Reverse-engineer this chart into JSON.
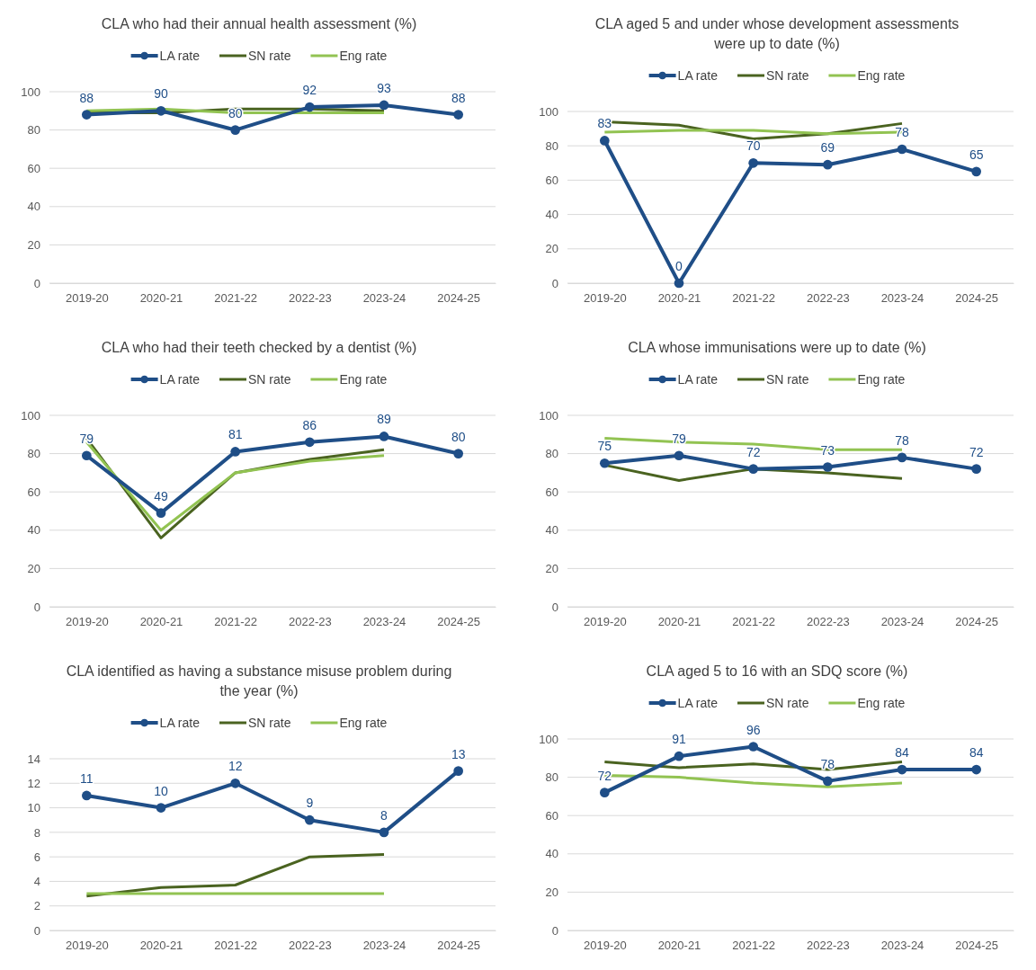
{
  "chart_data": [
    {
      "type": "line",
      "title": "CLA who had their annual health assessment (%)",
      "categories": [
        "2019-20",
        "2020-21",
        "2021-22",
        "2022-23",
        "2023-24",
        "2024-25"
      ],
      "ylim": [
        0,
        100
      ],
      "yticks": [
        0,
        20,
        40,
        60,
        80,
        100
      ],
      "grid": "y",
      "legend": "top",
      "series": [
        {
          "name": "LA rate",
          "color": "#1f4e87",
          "marker": "circle",
          "values": [
            88,
            90,
            80,
            92,
            93,
            88
          ],
          "value_labels": [
            "88",
            "90",
            "80",
            "92",
            "93",
            "88"
          ]
        },
        {
          "name": "SN rate",
          "color": "#4a6320",
          "marker": "none",
          "values": [
            89,
            89,
            91,
            91,
            90,
            null
          ]
        },
        {
          "name": "Eng rate",
          "color": "#92c352",
          "marker": "none",
          "values": [
            90,
            91,
            89,
            89,
            89,
            null
          ]
        }
      ]
    },
    {
      "type": "line",
      "title": "CLA aged 5 and under whose development assessments were up to date (%)",
      "categories": [
        "2019-20",
        "2020-21",
        "2021-22",
        "2022-23",
        "2023-24",
        "2024-25"
      ],
      "ylim": [
        0,
        100
      ],
      "yticks": [
        0,
        20,
        40,
        60,
        80,
        100
      ],
      "grid": "y",
      "legend": "top",
      "series": [
        {
          "name": "LA rate",
          "color": "#1f4e87",
          "marker": "circle",
          "values": [
            83,
            0,
            70,
            69,
            78,
            65
          ],
          "value_labels": [
            "83",
            "0",
            "70",
            "69",
            "78",
            "65"
          ]
        },
        {
          "name": "SN rate",
          "color": "#4a6320",
          "marker": "none",
          "values": [
            94,
            92,
            84,
            87,
            93,
            null
          ]
        },
        {
          "name": "Eng rate",
          "color": "#92c352",
          "marker": "none",
          "values": [
            88,
            89,
            89,
            87,
            88,
            null
          ]
        }
      ]
    },
    {
      "type": "line",
      "title": "CLA who had their teeth checked by a dentist (%)",
      "categories": [
        "2019-20",
        "2020-21",
        "2021-22",
        "2022-23",
        "2023-24",
        "2024-25"
      ],
      "ylim": [
        0,
        100
      ],
      "yticks": [
        0,
        20,
        40,
        60,
        80,
        100
      ],
      "grid": "y",
      "legend": "top",
      "series": [
        {
          "name": "LA rate",
          "color": "#1f4e87",
          "marker": "circle",
          "values": [
            79,
            49,
            81,
            86,
            89,
            80
          ],
          "value_labels": [
            "79",
            "49",
            "81",
            "86",
            "89",
            "80"
          ]
        },
        {
          "name": "SN rate",
          "color": "#4a6320",
          "marker": "none",
          "values": [
            88,
            36,
            70,
            77,
            82,
            null
          ]
        },
        {
          "name": "Eng rate",
          "color": "#92c352",
          "marker": "none",
          "values": [
            86,
            40,
            70,
            76,
            79,
            null
          ]
        }
      ]
    },
    {
      "type": "line",
      "title": "CLA whose immunisations were up to date (%)",
      "categories": [
        "2019-20",
        "2020-21",
        "2021-22",
        "2022-23",
        "2023-24",
        "2024-25"
      ],
      "ylim": [
        0,
        100
      ],
      "yticks": [
        0,
        20,
        40,
        60,
        80,
        100
      ],
      "grid": "y",
      "legend": "top",
      "series": [
        {
          "name": "LA rate",
          "color": "#1f4e87",
          "marker": "circle",
          "values": [
            75,
            79,
            72,
            73,
            78,
            72
          ],
          "value_labels": [
            "75",
            "79",
            "72",
            "73",
            "78",
            "72"
          ]
        },
        {
          "name": "SN rate",
          "color": "#4a6320",
          "marker": "none",
          "values": [
            74,
            66,
            72,
            70,
            67,
            null
          ]
        },
        {
          "name": "Eng rate",
          "color": "#92c352",
          "marker": "none",
          "values": [
            88,
            86,
            85,
            82,
            82,
            null
          ]
        }
      ]
    },
    {
      "type": "line",
      "title": "CLA identified as having a substance misuse problem during the year (%)",
      "categories": [
        "2019-20",
        "2020-21",
        "2021-22",
        "2022-23",
        "2023-24",
        "2024-25"
      ],
      "ylim": [
        0,
        14
      ],
      "yticks": [
        0,
        2,
        4,
        6,
        8,
        10,
        12,
        14
      ],
      "grid": "y",
      "legend": "top",
      "series": [
        {
          "name": "LA rate",
          "color": "#1f4e87",
          "marker": "circle",
          "values": [
            11,
            10,
            12,
            9,
            8,
            13
          ],
          "value_labels": [
            "11",
            "10",
            "12",
            "9",
            "8",
            "13"
          ]
        },
        {
          "name": "SN rate",
          "color": "#4a6320",
          "marker": "none",
          "values": [
            2.8,
            3.5,
            3.7,
            6,
            6.2,
            null
          ]
        },
        {
          "name": "Eng rate",
          "color": "#92c352",
          "marker": "none",
          "values": [
            3,
            3,
            3,
            3,
            3,
            null
          ]
        }
      ]
    },
    {
      "type": "line",
      "title": "CLA aged 5 to 16 with an SDQ score (%)",
      "categories": [
        "2019-20",
        "2020-21",
        "2021-22",
        "2022-23",
        "2023-24",
        "2024-25"
      ],
      "ylim": [
        0,
        100
      ],
      "yticks": [
        0,
        20,
        40,
        60,
        80,
        100
      ],
      "grid": "y",
      "legend": "top",
      "series": [
        {
          "name": "LA rate",
          "color": "#1f4e87",
          "marker": "circle",
          "values": [
            72,
            91,
            96,
            78,
            84,
            84
          ],
          "value_labels": [
            "72",
            "91",
            "96",
            "78",
            "84",
            "84"
          ]
        },
        {
          "name": "SN rate",
          "color": "#4a6320",
          "marker": "none",
          "values": [
            88,
            85,
            87,
            84,
            88,
            null
          ]
        },
        {
          "name": "Eng rate",
          "color": "#92c352",
          "marker": "none",
          "values": [
            81,
            80,
            77,
            75,
            77,
            null
          ]
        }
      ]
    }
  ]
}
